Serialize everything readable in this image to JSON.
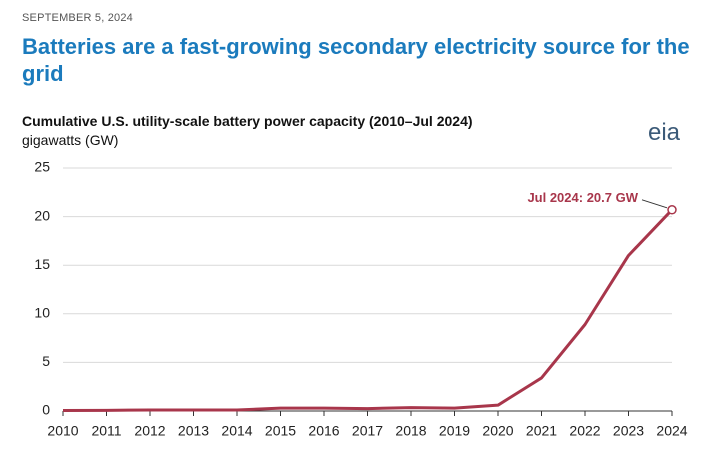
{
  "chart_data": {
    "type": "line",
    "date": "SEPTEMBER 5, 2024",
    "title": "Batteries are a fast-growing secondary electricity source for the grid",
    "subtitle": "Cumulative U.S. utility-scale battery power capacity (2010–Jul 2024)",
    "y_label": "gigawatts (GW)",
    "logo": "eia",
    "annotation": "Jul 2024: 20.7 GW",
    "x": [
      2010,
      2011,
      2012,
      2013,
      2014,
      2015,
      2016,
      2017,
      2018,
      2019,
      2020,
      2021,
      2022,
      2023,
      2024
    ],
    "values": [
      0.05,
      0.07,
      0.1,
      0.1,
      0.1,
      0.3,
      0.3,
      0.25,
      0.35,
      0.3,
      0.6,
      3.4,
      8.9,
      16,
      20.7
    ],
    "color": "#a8364b",
    "xlim": [
      2010,
      2024
    ],
    "xticks": [
      2010,
      2011,
      2012,
      2013,
      2014,
      2015,
      2016,
      2017,
      2018,
      2019,
      2020,
      2021,
      2022,
      2023,
      2024
    ],
    "ylim": [
      0,
      25
    ],
    "yticks": [
      0,
      5,
      10,
      15,
      20,
      25
    ],
    "grid": true
  }
}
